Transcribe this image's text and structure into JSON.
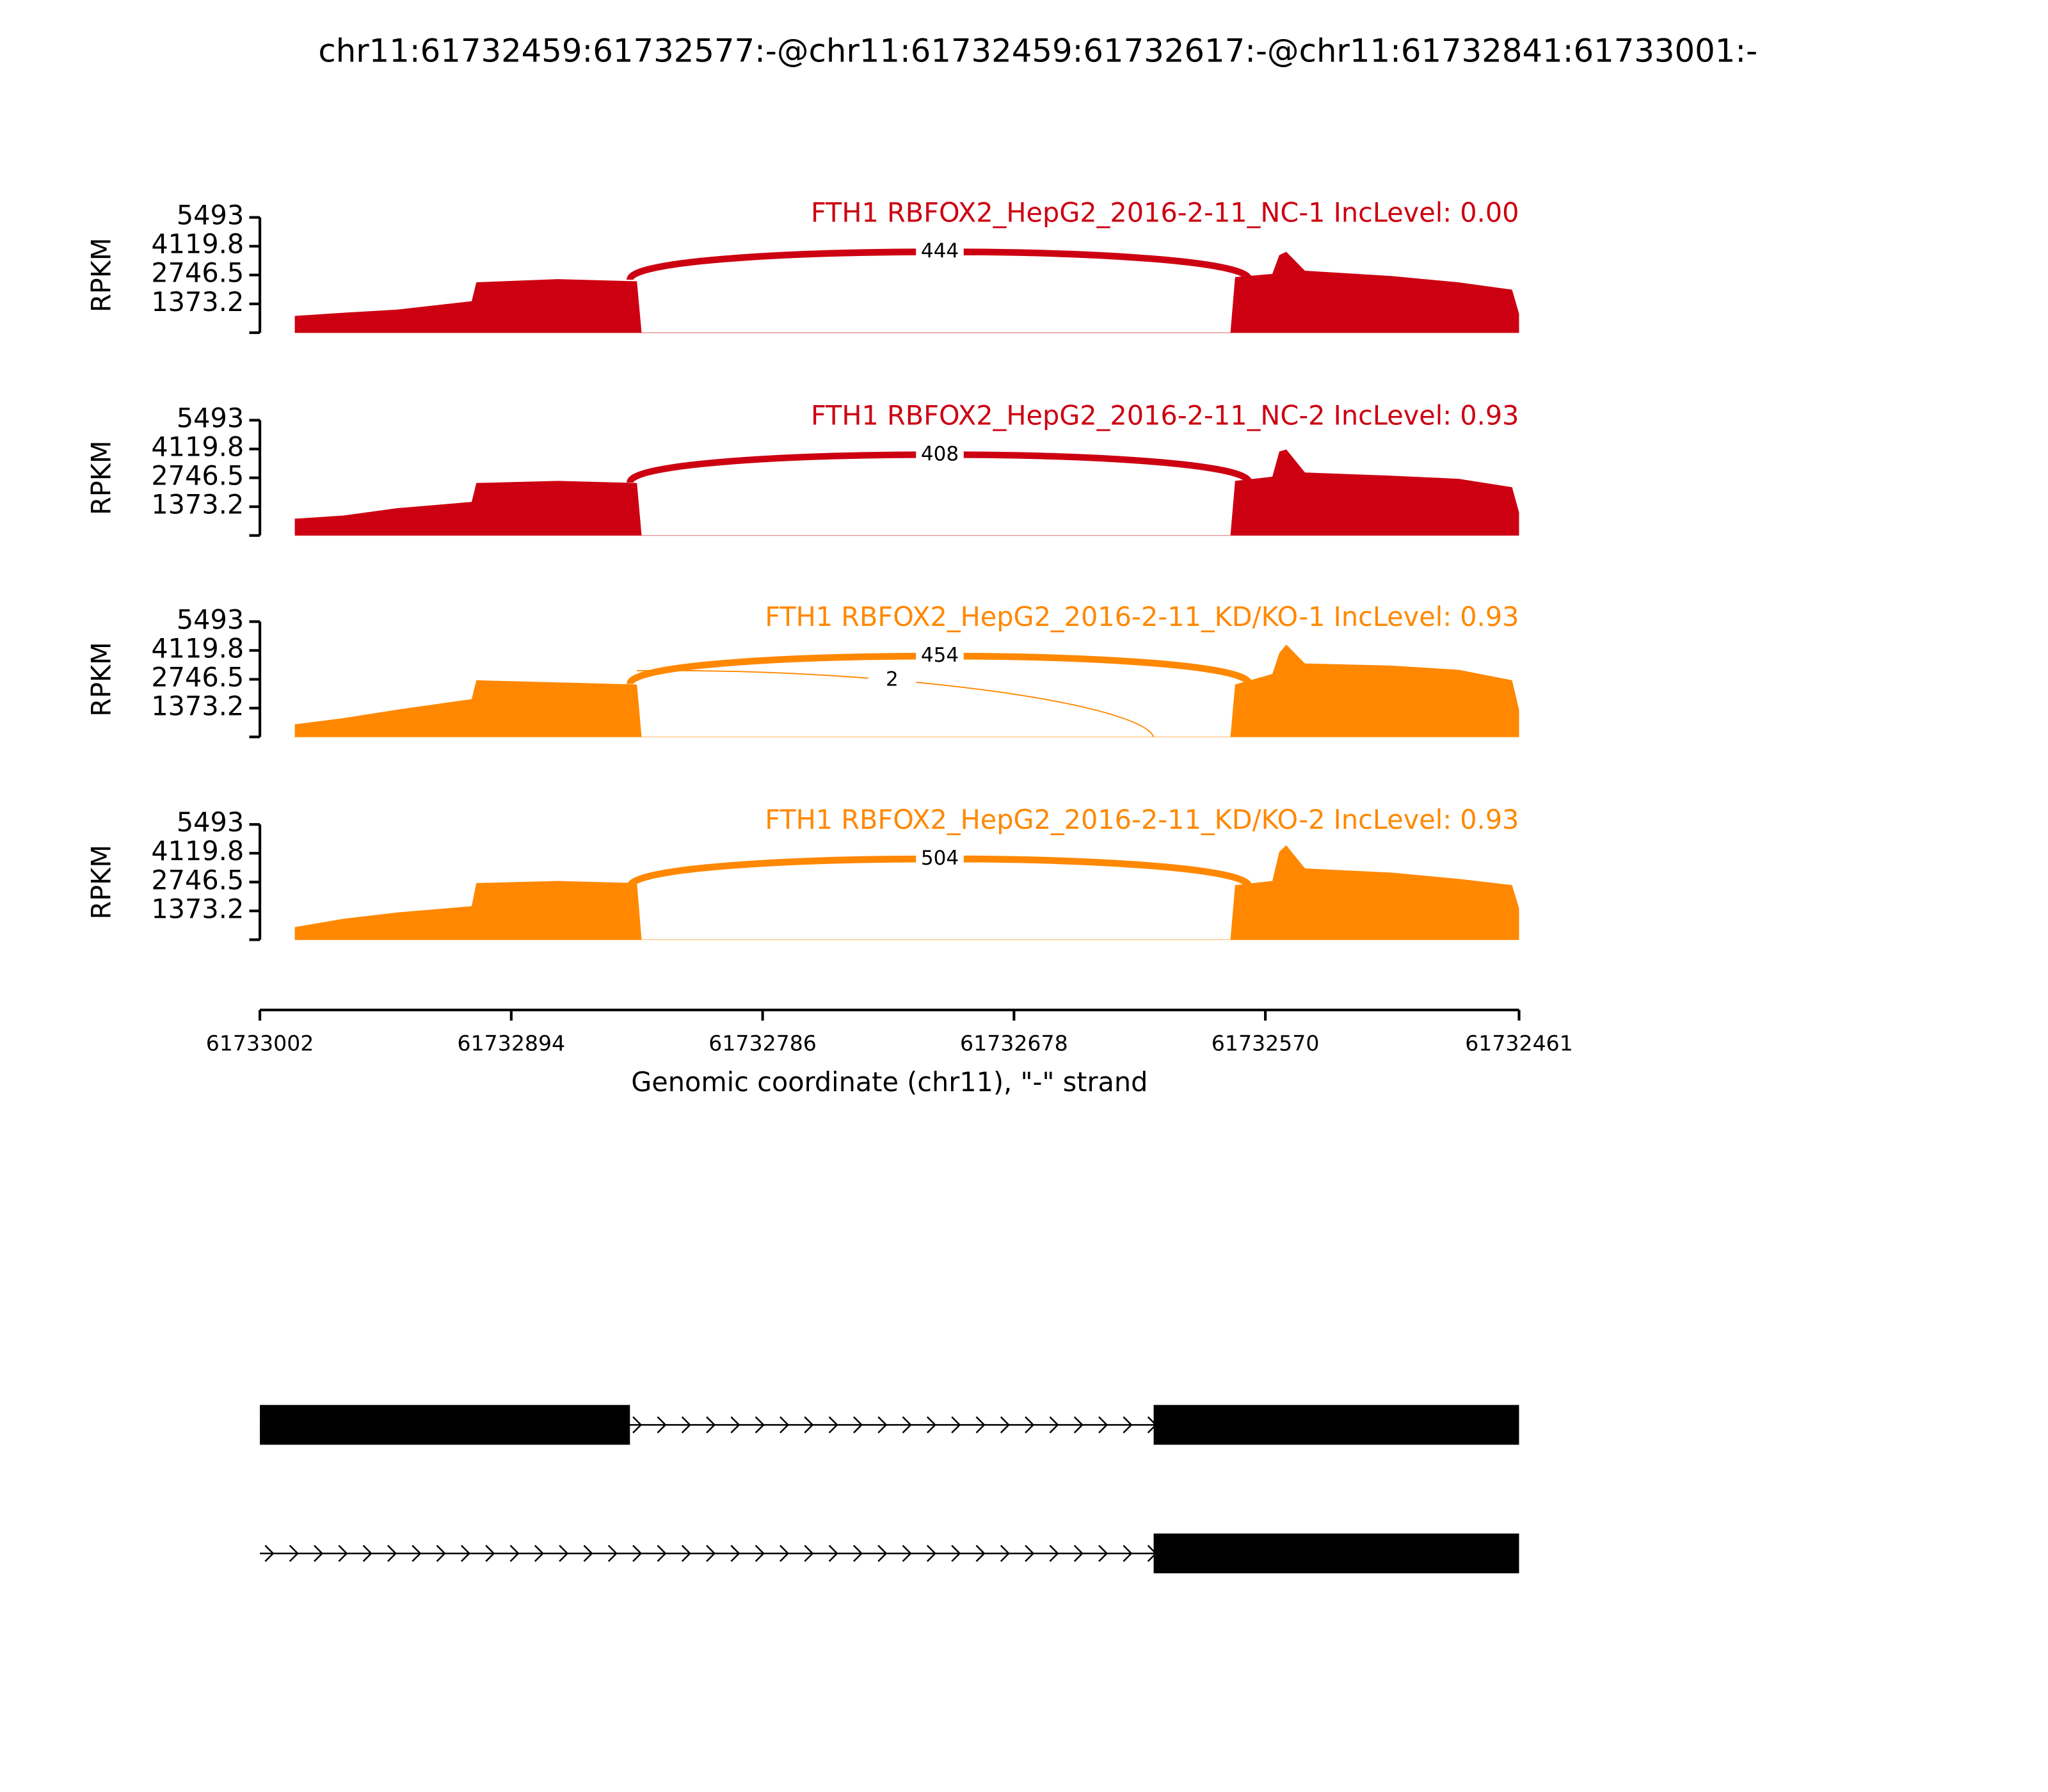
{
  "chart_data": {
    "type": "sashimi",
    "title": "chr11:61732459:61732577:-@chr11:61732459:61732617:-@chr11:61732841:61733001:-",
    "xlabel": "Genomic coordinate (chr11), \"-\" strand",
    "ylabel": "RPKM",
    "xlim": [
      61733002,
      61732461
    ],
    "xticks": [
      61733002,
      61732894,
      61732786,
      61732678,
      61732570,
      61732461
    ],
    "ylim": [
      0,
      5493
    ],
    "yticks": [
      1373.2,
      2746.5,
      4119.8,
      5493
    ],
    "x": [
      61732987,
      61732966,
      61732943,
      61732911,
      61732909,
      61732874,
      61732840,
      61732838,
      61732585,
      61732583,
      61732567,
      61732564,
      61732561,
      61732553,
      61732516,
      61732487,
      61732464,
      61732461
    ],
    "series": [
      {
        "name": "FTH1 RBFOX2_HepG2_2016-2-11_NC-1 IncLevel: 0.00",
        "color": "#cc0011",
        "values": [
          800,
          950,
          1100,
          1500,
          2400,
          2550,
          2450,
          0,
          0,
          2650,
          2800,
          3700,
          3850,
          2950,
          2700,
          2400,
          2050,
          900
        ],
        "junctions": [
          {
            "start": 61732843,
            "end": 61732577,
            "count": 444
          }
        ]
      },
      {
        "name": "FTH1 RBFOX2_HepG2_2016-2-11_NC-2 IncLevel: 0.93",
        "color": "#cc0011",
        "values": [
          800,
          950,
          1300,
          1600,
          2500,
          2600,
          2500,
          0,
          0,
          2600,
          2800,
          4000,
          4100,
          3000,
          2850,
          2700,
          2300,
          1100
        ],
        "junctions": [
          {
            "start": 61732843,
            "end": 61732577,
            "count": 408
          }
        ]
      },
      {
        "name": "FTH1 RBFOX2_HepG2_2016-2-11_KD/KO-1 IncLevel: 0.93",
        "color": "#ff8800",
        "values": [
          600,
          900,
          1300,
          1800,
          2700,
          2600,
          2500,
          0,
          0,
          2500,
          3000,
          4000,
          4400,
          3500,
          3400,
          3200,
          2700,
          1300
        ],
        "junctions": [
          {
            "start": 61732843,
            "end": 61732577,
            "count": 454
          },
          {
            "start": 61732840,
            "end": 61732618,
            "count": 2
          }
        ]
      },
      {
        "name": "FTH1 RBFOX2_HepG2_2016-2-11_KD/KO-2 IncLevel: 0.93",
        "color": "#ff8800",
        "values": [
          600,
          1000,
          1300,
          1600,
          2700,
          2800,
          2700,
          0,
          0,
          2600,
          2800,
          4200,
          4500,
          3400,
          3200,
          2900,
          2600,
          1500
        ],
        "junctions": [
          {
            "start": 61732843,
            "end": 61732577,
            "count": 504
          }
        ]
      }
    ],
    "transcripts": [
      {
        "start": 61733002,
        "end": 61732461,
        "exons": [
          [
            61733002,
            61732843
          ],
          [
            61732618,
            61732461
          ]
        ]
      },
      {
        "start": 61733002,
        "end": 61732461,
        "exons": [
          [
            61732618,
            61732461
          ]
        ]
      }
    ]
  }
}
